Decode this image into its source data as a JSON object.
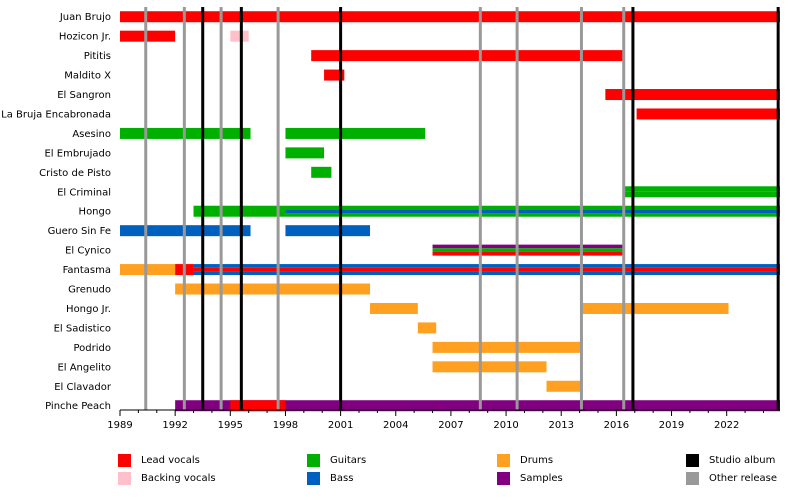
{
  "chart_data": {
    "type": "timeline",
    "members": [
      "Juan Brujo",
      "Hozicon Jr.",
      "Pititis",
      "Maldito X",
      "El Sangron",
      "La Bruja Encabronada",
      "Asesino",
      "El Embrujado",
      "Cristo de Pisto",
      "El Criminal",
      "Hongo",
      "Guero Sin Fe",
      "El Cynico",
      "Fantasma",
      "Grenudo",
      "Hongo Jr.",
      "El Sadistico",
      "Podrido",
      "El Angelito",
      "El Clavador",
      "Pinche Peach"
    ],
    "x_ticks": [
      "1989",
      "1992",
      "1995",
      "1998",
      "2001",
      "2004",
      "2007",
      "2010",
      "2013",
      "2016",
      "2019",
      "2022"
    ],
    "xlim": [
      1989,
      2024.9
    ],
    "studio_albums": [
      1993.5,
      1995.6,
      2001.0,
      2016.9,
      2024.8
    ],
    "other_releases": [
      1990.4,
      1992.5,
      1994.5,
      1997.6,
      2008.6,
      2010.6,
      2014.1,
      2016.4
    ],
    "colors": {
      "Lead vocals": "#ff0000",
      "Backing vocals": "#ffc0cb",
      "Guitars": "#00b000",
      "Bass": "#0060c0",
      "Drums": "#ffa020",
      "Samples": "#800080",
      "Studio album": "#000000",
      "Other release": "#999999"
    },
    "bars": [
      {
        "member": 0,
        "start": 1989.0,
        "end": 2024.9,
        "role": "Lead vocals"
      },
      {
        "member": 1,
        "start": 1989.0,
        "end": 1992.0,
        "role": "Lead vocals"
      },
      {
        "member": 1,
        "start": 1995.0,
        "end": 1996.0,
        "role": "Backing vocals"
      },
      {
        "member": 2,
        "start": 1999.4,
        "end": 2016.4,
        "role": "Lead vocals"
      },
      {
        "member": 3,
        "start": 2000.1,
        "end": 2001.2,
        "role": "Lead vocals"
      },
      {
        "member": 4,
        "start": 2015.4,
        "end": 2024.9,
        "role": "Lead vocals"
      },
      {
        "member": 5,
        "start": 2017.1,
        "end": 2024.9,
        "role": "Lead vocals"
      },
      {
        "member": 6,
        "start": 1989.0,
        "end": 1996.1,
        "role": "Guitars"
      },
      {
        "member": 6,
        "start": 1998.0,
        "end": 2005.6,
        "role": "Guitars"
      },
      {
        "member": 7,
        "start": 1998.0,
        "end": 2000.1,
        "role": "Guitars"
      },
      {
        "member": 8,
        "start": 1999.4,
        "end": 2000.5,
        "role": "Guitars"
      },
      {
        "member": 9,
        "start": 2016.4,
        "end": 2024.9,
        "roles": [
          "Guitars",
          "Guitars"
        ]
      },
      {
        "member": 10,
        "start": 1993.0,
        "end": 1998.0,
        "role": "Guitars"
      },
      {
        "member": 10,
        "start": 1998.0,
        "end": 2024.9,
        "roles": [
          "Guitars",
          "Bass",
          "Guitars"
        ]
      },
      {
        "member": 11,
        "start": 1989.0,
        "end": 1996.1,
        "role": "Bass"
      },
      {
        "member": 11,
        "start": 1998.0,
        "end": 2002.6,
        "role": "Bass"
      },
      {
        "member": 12,
        "start": 2006.0,
        "end": 2016.4,
        "roles": [
          "Samples",
          "Guitars",
          "Lead vocals"
        ]
      },
      {
        "member": 13,
        "start": 1989.0,
        "end": 1992.0,
        "role": "Drums"
      },
      {
        "member": 13,
        "start": 1992.0,
        "end": 1993.0,
        "role": "Lead vocals"
      },
      {
        "member": 13,
        "start": 1993.0,
        "end": 2024.9,
        "roles": [
          "Bass",
          "Lead vocals",
          "Bass"
        ]
      },
      {
        "member": 14,
        "start": 1992.0,
        "end": 2002.6,
        "role": "Drums"
      },
      {
        "member": 15,
        "start": 2002.6,
        "end": 2005.2,
        "role": "Drums"
      },
      {
        "member": 15,
        "start": 2014.1,
        "end": 2022.1,
        "role": "Drums"
      },
      {
        "member": 16,
        "start": 2005.2,
        "end": 2006.2,
        "role": "Drums"
      },
      {
        "member": 17,
        "start": 2006.0,
        "end": 2014.1,
        "role": "Drums"
      },
      {
        "member": 18,
        "start": 2006.0,
        "end": 2012.2,
        "role": "Drums"
      },
      {
        "member": 19,
        "start": 2012.2,
        "end": 2014.1,
        "role": "Drums"
      },
      {
        "member": 20,
        "start": 1992.0,
        "end": 2024.9,
        "role": "Samples"
      },
      {
        "member": 20,
        "start": 1995.0,
        "end": 1998.0,
        "role": "Lead vocals"
      }
    ],
    "legend": [
      {
        "label": "Lead vocals",
        "color": "#ff0000"
      },
      {
        "label": "Backing vocals",
        "color": "#ffc0cb"
      },
      {
        "label": "Guitars",
        "color": "#00b000"
      },
      {
        "label": "Bass",
        "color": "#0060c0"
      },
      {
        "label": "Drums",
        "color": "#ffa020"
      },
      {
        "label": "Samples",
        "color": "#800080"
      },
      {
        "label": "Studio album",
        "color": "#000000"
      },
      {
        "label": "Other release",
        "color": "#999999"
      }
    ]
  }
}
